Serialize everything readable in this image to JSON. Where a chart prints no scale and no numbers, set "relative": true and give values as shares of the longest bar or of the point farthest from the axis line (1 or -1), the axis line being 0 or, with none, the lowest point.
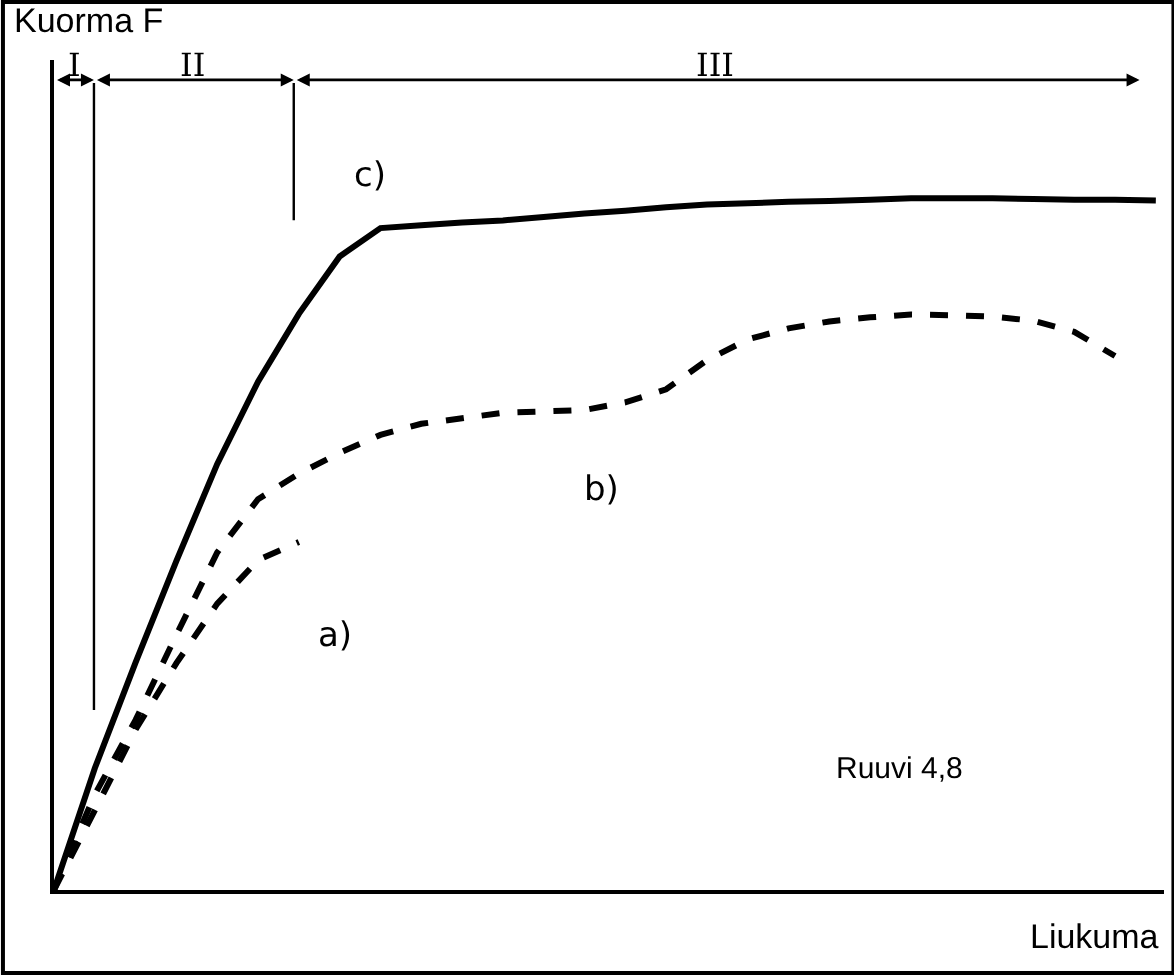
{
  "chart_data": {
    "type": "line",
    "relative": true,
    "xlabel": "Liukuma",
    "ylabel": "Kuorma F",
    "categories": [
      null,
      null,
      null,
      null,
      null,
      null,
      null,
      null,
      null,
      null,
      null,
      null,
      null,
      null,
      null,
      null,
      null,
      null,
      null,
      null,
      null,
      null,
      null,
      null,
      null,
      null,
      null,
      null
    ],
    "series": [
      {
        "color": "#000000",
        "line_style": "solid",
        "values": [
          0,
          0.176,
          0.329,
          0.476,
          0.616,
          0.735,
          0.833,
          0.916,
          0.957,
          0.961,
          0.965,
          0.968,
          0.973,
          0.978,
          0.982,
          0.987,
          0.991,
          0.993,
          0.995,
          0.996,
          0.998,
          1.0,
          1.0,
          1.0,
          0.999,
          0.998,
          0.998,
          0.997
        ]
      },
      {
        "color": "#000000",
        "line_style": "dashed",
        "values": [
          0,
          0.138,
          0.246,
          0.369,
          0.488,
          0.565,
          0.602,
          0.632,
          0.658,
          0.674,
          0.682,
          0.69,
          0.692,
          0.694,
          0.705,
          0.724,
          0.766,
          0.796,
          0.812,
          0.822,
          0.828,
          0.832,
          0.831,
          0.829,
          0.823,
          0.807,
          0.772,
          null
        ]
      },
      {
        "color": "#000000",
        "line_style": "dashed",
        "values": [
          0,
          0.115,
          0.232,
          0.328,
          0.414,
          0.477,
          0.503,
          null,
          null,
          null,
          null,
          null,
          null,
          null,
          null,
          null,
          null,
          null,
          null,
          null,
          null,
          null,
          null,
          null,
          null,
          null,
          null,
          null
        ]
      }
    ],
    "annotations": [
      "c)",
      "b)",
      "a)",
      "Ruuvi 4,8",
      "I",
      "II",
      "III"
    ]
  }
}
